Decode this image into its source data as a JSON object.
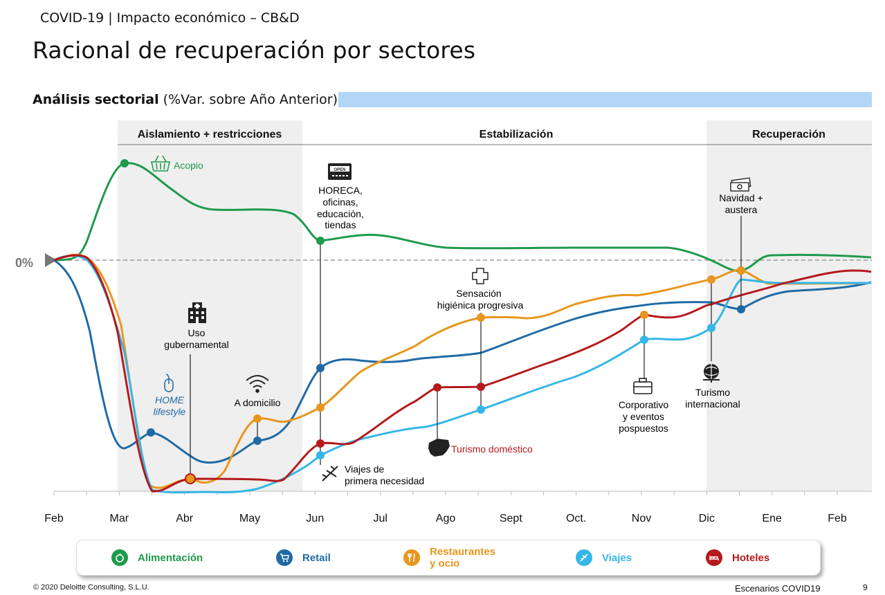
{
  "header": {
    "subtitle": "COVID-19 | Impacto económico – CB&D",
    "title": "Racional de recuperación por sectores"
  },
  "section": {
    "title_bold": "Análisis sectorial",
    "title_rest": " (%Var. sobre Año Anterior)"
  },
  "chart_data": {
    "type": "line",
    "x": [
      "Feb",
      "Mar",
      "Abr",
      "May",
      "Jun",
      "Jul",
      "Ago",
      "Sept",
      "Oct.",
      "Nov",
      "Dic",
      "Ene",
      "Feb"
    ],
    "zero_label": "0%",
    "phases": [
      "Aislamiento + restricciones",
      "Estabilización",
      "Recuperación"
    ],
    "series": [
      {
        "name": "Alimentación",
        "color": "#1e9a4b"
      },
      {
        "name": "Retail",
        "color": "#1f6aa5"
      },
      {
        "name": "Restaurantes y ocio",
        "color": "#e8961d"
      },
      {
        "name": "Viajes",
        "color": "#35b6e6"
      },
      {
        "name": "Hoteles",
        "color": "#b5191d"
      }
    ],
    "annotations": {
      "acopio": "Acopio",
      "horeca": [
        "HORECA,",
        "oficinas,",
        "educación,",
        "tiendas"
      ],
      "uso": [
        "Uso",
        "gubernamental"
      ],
      "home": [
        "HOME",
        "lifestyle"
      ],
      "domicilio": "A domicilio",
      "viajes_primera": [
        "Viajes de",
        "primera necesidad"
      ],
      "sensacion": [
        "Sensación",
        "higiénica progresiva"
      ],
      "turismo_domestico": "Turismo doméstico",
      "corporativo": [
        "Corporativo",
        "y eventos",
        "pospuestos"
      ],
      "turismo_int": [
        "Turismo",
        "internacional"
      ],
      "navidad": [
        "Navidad +",
        "austera"
      ]
    }
  },
  "legend": {
    "items": [
      "Alimentación",
      "Retail",
      "Restaurantes",
      "y ocio",
      "Viajes",
      "Hoteles"
    ]
  },
  "footer": {
    "left": "© 2020 Deloitte Consulting, S.L.U.",
    "right": "Escenarios COVID19",
    "page": "9"
  }
}
